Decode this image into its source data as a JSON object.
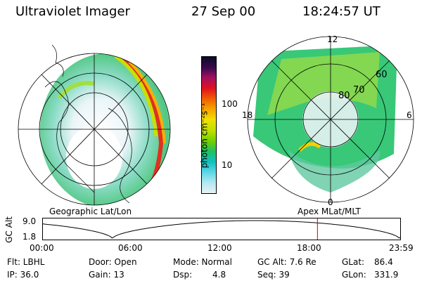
{
  "header": {
    "instrument": "Ultraviolet Imager",
    "date": "27 Sep 00",
    "time": "18:24:57 UT"
  },
  "colorbar": {
    "unit_label": "photon cm⁻²s⁻¹",
    "ticks": [
      "100",
      "10"
    ],
    "colors": [
      "#0a0a2a",
      "#3a0a4a",
      "#a01060",
      "#e01020",
      "#f06000",
      "#f8a000",
      "#f0e000",
      "#c0e000",
      "#70d000",
      "#20c060",
      "#10c0c0",
      "#60d8e8",
      "#b0e8f0",
      "#e8f0f4"
    ]
  },
  "left_panel": {
    "caption": "Geographic Lat/Lon"
  },
  "right_panel": {
    "caption": "Apex MLat/MLT",
    "lat_labels": [
      "60",
      "70",
      "80"
    ],
    "mlt_labels": {
      "top": "12",
      "left": "18",
      "right": "6",
      "bottom": "0"
    }
  },
  "timeline": {
    "ylabel": "GC Alt",
    "yticks": [
      "9.0",
      "1.8"
    ],
    "xticks": [
      "00:00",
      "06:00",
      "12:00",
      "18:00",
      "23:59"
    ],
    "marker_hour": 18.4158,
    "marker_color": "#cc0000"
  },
  "footer": {
    "flt": "Flt: LBHL",
    "ip": "IP: 36.0",
    "door": "Door: Open",
    "gain": "Gain: 13",
    "mode": "Mode: Normal",
    "dsp_label": "Dsp:",
    "dsp_value": "4.8",
    "gcalt": "GC Alt: 7.6 Re",
    "seq": "Seq: 39",
    "glat_label": "GLat:",
    "glat_value": "86.4",
    "glon_label": "GLon:",
    "glon_value": "331.9"
  }
}
